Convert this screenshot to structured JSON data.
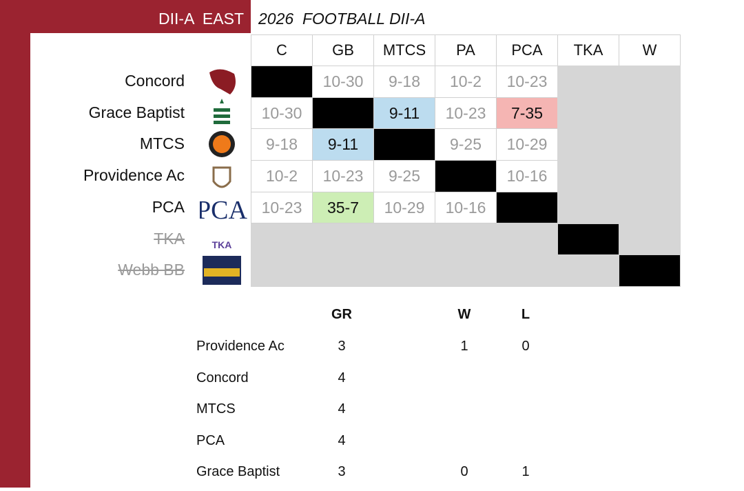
{
  "header": {
    "title": "DII-A  EAST",
    "subtitle": "2026  FOOTBALL DII-A"
  },
  "matrix": {
    "columns": [
      "C",
      "GB",
      "MTCS",
      "PA",
      "PCA",
      "TKA",
      "W"
    ],
    "rows": [
      {
        "name": "Concord",
        "struck": false,
        "cells": [
          null,
          "10-30",
          "9-18",
          "10-2",
          "10-23",
          null,
          null
        ]
      },
      {
        "name": "Grace Baptist",
        "struck": false,
        "cells": [
          "10-30",
          null,
          "9-11",
          "10-23",
          "7-35",
          null,
          null
        ]
      },
      {
        "name": "MTCS",
        "struck": false,
        "cells": [
          "9-18",
          "9-11",
          null,
          "9-25",
          "10-29",
          null,
          null
        ]
      },
      {
        "name": "Providence Ac",
        "struck": false,
        "cells": [
          "10-2",
          "10-23",
          "9-25",
          null,
          "10-16",
          null,
          null
        ]
      },
      {
        "name": "PCA",
        "struck": false,
        "cells": [
          "10-23",
          "35-7",
          "10-29",
          "10-16",
          null,
          null,
          null
        ]
      },
      {
        "name": "TKA",
        "struck": true,
        "cells": [
          null,
          null,
          null,
          null,
          null,
          null,
          null
        ]
      },
      {
        "name": "Webb BB",
        "struck": true,
        "cells": [
          null,
          null,
          null,
          null,
          null,
          null,
          null
        ]
      }
    ],
    "highlights": [
      {
        "row": 1,
        "col": 2,
        "color": "#bcdcef"
      },
      {
        "row": 1,
        "col": 4,
        "color": "#f5b5b3"
      },
      {
        "row": 2,
        "col": 1,
        "color": "#bcdcef"
      },
      {
        "row": 4,
        "col": 1,
        "color": "#cdeeb5"
      }
    ]
  },
  "standings": {
    "columns": [
      "GR",
      "W",
      "L"
    ],
    "rows": [
      {
        "name": "Providence Ac",
        "values": [
          3,
          1,
          0
        ]
      },
      {
        "name": "Concord",
        "values": [
          4,
          null,
          null
        ]
      },
      {
        "name": "MTCS",
        "values": [
          4,
          null,
          null
        ]
      },
      {
        "name": "PCA",
        "values": [
          4,
          null,
          null
        ]
      },
      {
        "name": "Grace Baptist",
        "values": [
          3,
          0,
          1
        ]
      }
    ]
  }
}
